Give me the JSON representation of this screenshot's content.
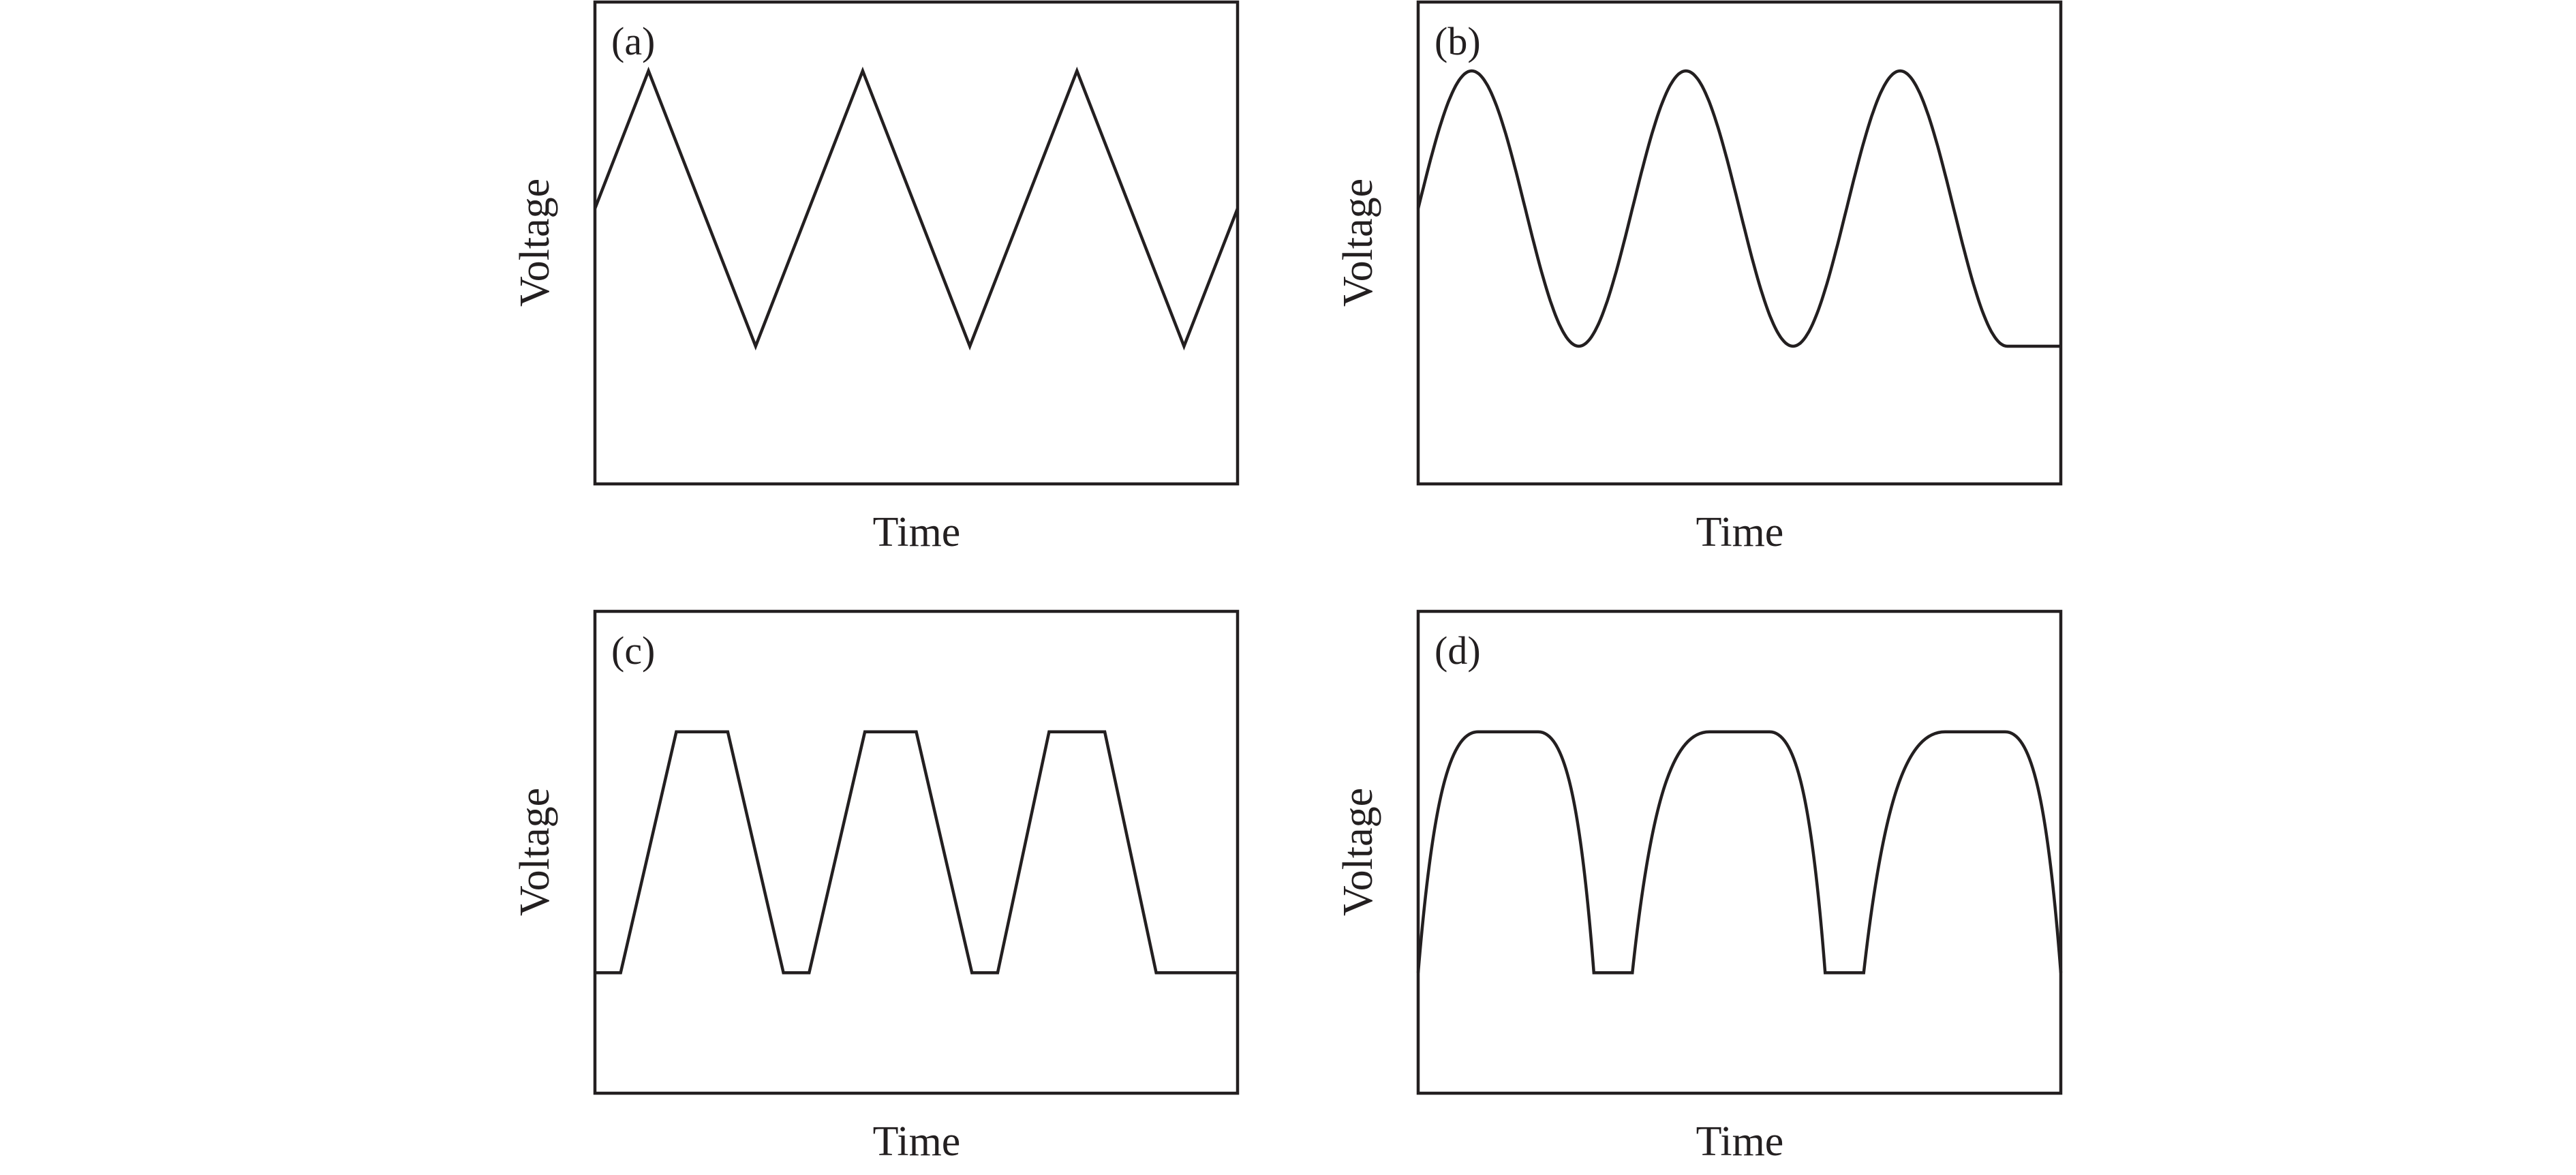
{
  "chart_data": [
    {
      "type": "line",
      "panel_label": "(a)",
      "shape": "triangle",
      "xlabel": "Time",
      "ylabel": "Voltage",
      "grid": false,
      "line_color": "#231f20",
      "x": [
        0.0,
        0.25,
        0.75,
        1.25,
        1.75,
        2.25,
        2.75,
        3.0
      ],
      "values": [
        0.0,
        1.0,
        -1.0,
        1.0,
        -1.0,
        1.0,
        -1.0,
        0.0
      ],
      "xlim": [
        0,
        3
      ],
      "ylim": [
        -2.0,
        1.5
      ]
    },
    {
      "type": "line",
      "panel_label": "(b)",
      "shape": "sine",
      "xlabel": "Time",
      "ylabel": "Voltage",
      "grid": false,
      "line_color": "#231f20",
      "x": [
        0.0,
        0.25,
        0.75,
        1.25,
        1.75,
        2.25,
        2.75,
        3.0
      ],
      "values": [
        0.0,
        1.0,
        -1.0,
        1.0,
        -1.0,
        1.0,
        -1.0,
        -1.0
      ],
      "xlim": [
        0,
        3
      ],
      "ylim": [
        -2.0,
        1.5
      ]
    },
    {
      "type": "line",
      "panel_label": "(c)",
      "shape": "trapezoid",
      "xlabel": "Time",
      "ylabel": "Voltage",
      "grid": false,
      "line_color": "#231f20",
      "x": [
        0.0,
        0.06,
        0.19,
        0.31,
        0.44,
        0.5,
        0.63,
        0.75,
        0.88,
        0.94,
        1.06,
        1.19,
        1.31,
        1.37,
        1.5
      ],
      "values": [
        0,
        0,
        1,
        1,
        0,
        0,
        1,
        1,
        0,
        0,
        1,
        1,
        0,
        0,
        0
      ],
      "xlim": [
        0,
        1.5
      ],
      "ylim": [
        -0.5,
        1.5
      ]
    },
    {
      "type": "line",
      "panel_label": "(d)",
      "shape": "rounded-pulse",
      "xlabel": "Time",
      "ylabel": "Voltage",
      "grid": false,
      "line_color": "#231f20",
      "x": [
        0.0,
        0.14,
        0.28,
        0.41,
        0.5,
        0.68,
        0.82,
        0.95,
        1.04,
        1.23,
        1.37,
        1.5
      ],
      "values": [
        0,
        1,
        1,
        0,
        0,
        1,
        1,
        0,
        0,
        1,
        1,
        0
      ],
      "xlim": [
        0,
        1.5
      ],
      "ylim": [
        -0.5,
        1.5
      ]
    }
  ]
}
